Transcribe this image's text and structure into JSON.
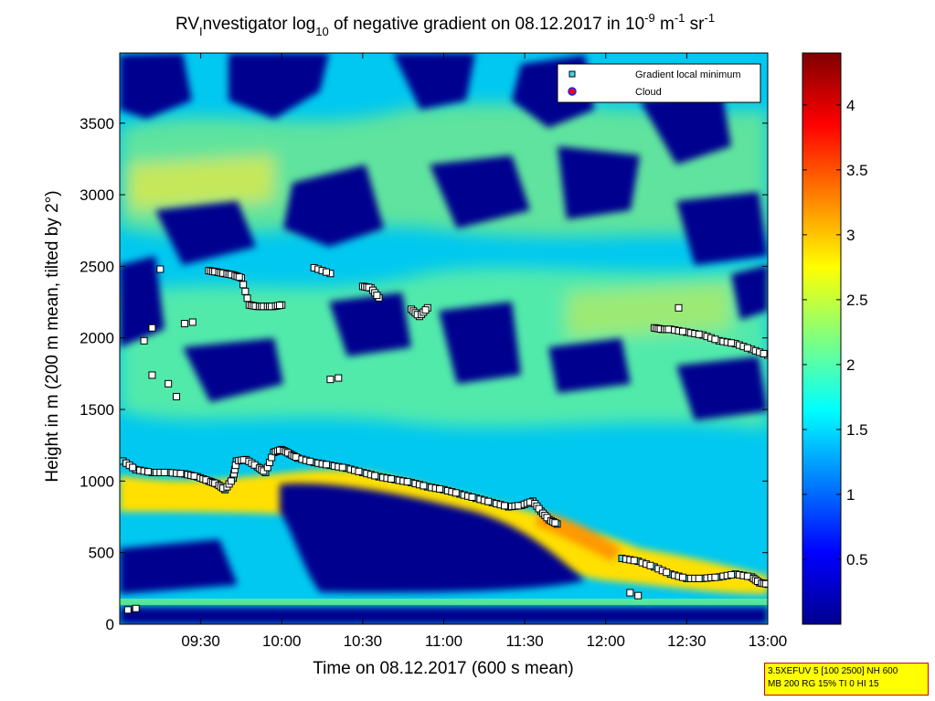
{
  "chart_data": {
    "type": "heatmap",
    "title": {
      "a": "RV",
      "b": "I",
      "c": "nvestigator log",
      "d": "10",
      "e": " of negative gradient on 08.12.2017 in 10",
      "f": "-9",
      "g": " m",
      "h": "-1",
      "i": " sr",
      "j": "-1"
    },
    "xlabel": "Time on 08.12.2017 (600 s mean)",
    "ylabel": "Height in m (200 m mean, tilted by 2°)",
    "x_ticks": [
      "09:30",
      "10:00",
      "10:30",
      "11:00",
      "11:30",
      "12:00",
      "12:30",
      "13:00"
    ],
    "y_ticks": [
      "0",
      "500",
      "1000",
      "1500",
      "2000",
      "2500",
      "3000",
      "3500"
    ],
    "xlim_hours": [
      9.0,
      13.0
    ],
    "ylim": [
      0,
      3990
    ],
    "colorbar": {
      "ticks": [
        "0.5",
        "1",
        "1.5",
        "2",
        "2.5",
        "3",
        "3.5",
        "4"
      ],
      "range": [
        0,
        4.4
      ],
      "colormap": "jet"
    },
    "legend": {
      "position": "top-right",
      "entries": [
        "Gradient local minimum",
        "Cloud"
      ]
    },
    "series": [
      {
        "name": "Gradient local minimum",
        "x": [
          9.02,
          9.1,
          9.2,
          9.3,
          9.4,
          9.48,
          9.55,
          9.6,
          9.65,
          9.7,
          9.72,
          9.78,
          9.85,
          9.9,
          9.95,
          10.0,
          10.05,
          10.1,
          10.2,
          10.3,
          10.4,
          10.5,
          10.6,
          10.7,
          10.8,
          10.9,
          11.0,
          11.1,
          11.2,
          11.3,
          11.4,
          11.48,
          11.55,
          11.6,
          11.65,
          11.7
        ],
        "y": [
          1140,
          1080,
          1060,
          1060,
          1050,
          1030,
          1000,
          980,
          940,
          1020,
          1140,
          1150,
          1100,
          1060,
          1200,
          1220,
          1190,
          1160,
          1130,
          1110,
          1090,
          1060,
          1030,
          1010,
          990,
          960,
          940,
          910,
          880,
          850,
          820,
          830,
          860,
          790,
          730,
          700
        ]
      },
      {
        "name": "Gradient local minimum",
        "x": [
          12.1,
          12.2,
          12.3,
          12.4,
          12.5,
          12.6,
          12.7,
          12.8,
          12.9,
          12.95,
          13.0
        ],
        "y": [
          460,
          440,
          400,
          350,
          320,
          320,
          330,
          350,
          330,
          290,
          280
        ]
      },
      {
        "name": "Gradient local minimum",
        "x": [
          9.55,
          9.6,
          9.65,
          9.7,
          9.75,
          9.8,
          9.85,
          9.9,
          9.95,
          10.0,
          10.2,
          10.3,
          10.5,
          10.55,
          10.6,
          10.8,
          10.85,
          10.9,
          12.3,
          12.35,
          12.4,
          12.5,
          12.6,
          12.7,
          12.8,
          12.9,
          13.0
        ],
        "y": [
          2470,
          2460,
          2450,
          2440,
          2420,
          2230,
          2220,
          2220,
          2220,
          2230,
          2490,
          2450,
          2360,
          2350,
          2280,
          2200,
          2150,
          2210,
          2070,
          2060,
          2060,
          2040,
          2020,
          1980,
          1960,
          1920,
          1880
        ]
      },
      {
        "name": "Gradient local minimum",
        "x": [
          9.25,
          9.2,
          9.15,
          9.2,
          9.3,
          9.35,
          9.4,
          9.45,
          10.3,
          10.35,
          12.15,
          12.2,
          9.05,
          9.1,
          12.45
        ],
        "y": [
          2480,
          2070,
          1980,
          1740,
          1680,
          1590,
          2100,
          2110,
          1710,
          1720,
          220,
          200,
          100,
          110,
          2210
        ]
      }
    ]
  },
  "info_box": {
    "line1": "3.5XEFUV 5 [100 2500] NH 600",
    "line2": "MB 200 RG 15% TI 0 HI 15"
  },
  "colors": {
    "background_low": "#00008f",
    "background_mid": "#00c8ff",
    "band_high": "#ffd000",
    "marker_fill": "#40d8e8"
  }
}
